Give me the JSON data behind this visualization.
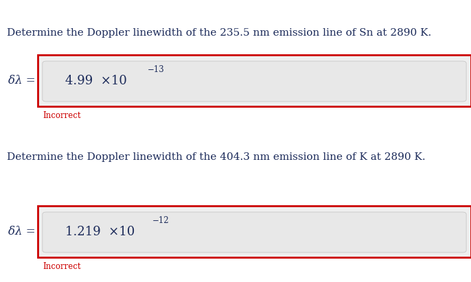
{
  "bg_color": "#ffffff",
  "text_color": "#1c2b5a",
  "red_color": "#cc0000",
  "incorrect_color": "#cc0000",
  "question1": "Determine the Doppler linewidth of the 235.5 nm emission line of Sn at 2890 K.",
  "question2": "Determine the Doppler linewidth of the 404.3 nm emission line of K at 2890 K.",
  "label": "δλ =",
  "answer1_coeff": "4.99  ×10",
  "answer1_exp": "−13",
  "answer2_coeff": "1.219  ×10",
  "answer2_exp": "−12",
  "incorrect_text": "Incorrect",
  "fig_w": 6.86,
  "fig_h": 4.11,
  "dpi": 100
}
